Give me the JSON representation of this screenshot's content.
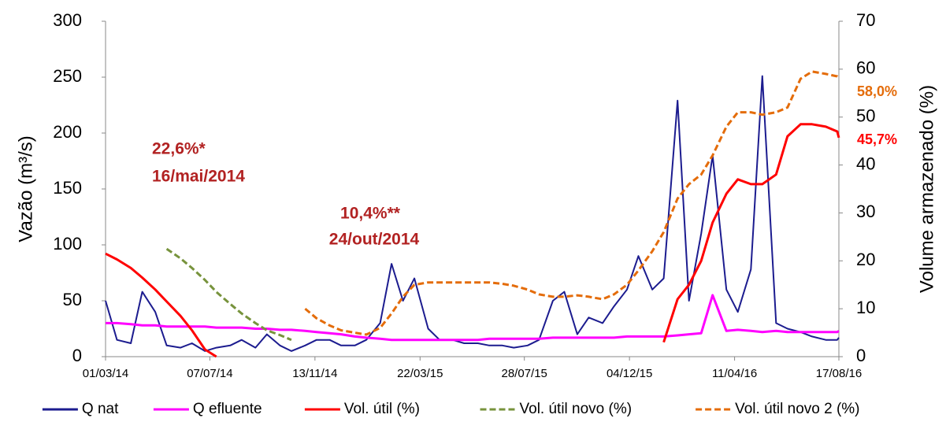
{
  "chart_data": {
    "type": "line",
    "y_label": "Vazão (m³/s)",
    "y2_label": "Volume armazenado (%)",
    "x": [
      "01/03/14",
      "15/03/14",
      "01/04/14",
      "15/04/14",
      "01/05/14",
      "15/05/14",
      "01/06/14",
      "15/06/14",
      "01/07/14",
      "15/07/14",
      "01/08/14",
      "15/08/14",
      "01/09/14",
      "15/09/14",
      "01/10/14",
      "15/10/14",
      "01/11/14",
      "15/11/14",
      "01/12/14",
      "15/12/14",
      "01/01/15",
      "15/01/15",
      "01/02/15",
      "15/02/15",
      "01/03/15",
      "15/03/15",
      "01/04/15",
      "15/04/15",
      "01/05/15",
      "15/05/15",
      "01/06/15",
      "15/06/15",
      "01/07/15",
      "15/07/15",
      "01/08/15",
      "15/08/15",
      "01/09/15",
      "15/09/15",
      "01/10/15",
      "15/10/15",
      "01/11/15",
      "15/11/15",
      "01/12/15",
      "15/12/15",
      "01/01/16",
      "15/01/16",
      "01/02/16",
      "15/02/16",
      "01/03/16",
      "15/03/16",
      "01/04/16",
      "15/04/16",
      "01/05/16",
      "15/05/16",
      "01/06/16",
      "15/06/16",
      "01/07/16",
      "15/07/16",
      "01/08/16",
      "15/08/16",
      "17/08/16"
    ],
    "xlim": [
      "01/03/14",
      "17/08/16"
    ],
    "xticks": [
      "01/03/14",
      "07/07/14",
      "13/11/14",
      "22/03/15",
      "28/07/15",
      "04/12/15",
      "11/04/16",
      "17/08/16"
    ],
    "ylim": [
      0,
      300
    ],
    "yticks": [
      0,
      50,
      100,
      150,
      200,
      250,
      300
    ],
    "y2lim": [
      0,
      70
    ],
    "y2ticks": [
      0,
      10,
      20,
      30,
      40,
      50,
      60,
      70
    ],
    "legend": "bottom",
    "series": [
      {
        "name": "Q nat",
        "color": "#1c1c8f",
        "dash": false,
        "values": [
          50,
          15,
          12,
          58,
          40,
          10,
          8,
          12,
          5,
          8,
          10,
          15,
          8,
          20,
          10,
          5,
          10,
          15,
          15,
          10,
          10,
          15,
          30,
          83,
          50,
          70,
          25,
          15,
          15,
          12,
          12,
          10,
          10,
          8,
          10,
          15,
          50,
          58,
          20,
          35,
          30,
          45,
          60,
          90,
          60,
          70,
          229,
          50,
          110,
          180,
          60,
          40,
          78,
          251,
          30,
          25,
          22,
          18,
          15,
          15,
          17
        ]
      },
      {
        "name": "Q efluente",
        "color": "#ff00ff",
        "dash": false,
        "values": [
          30,
          30,
          29,
          28,
          28,
          27,
          27,
          27,
          27,
          26,
          26,
          26,
          25,
          25,
          24,
          24,
          23,
          22,
          21,
          20,
          18,
          17,
          16,
          15,
          15,
          15,
          15,
          15,
          15,
          15,
          15,
          16,
          16,
          16,
          16,
          16,
          17,
          17,
          17,
          17,
          17,
          17,
          18,
          18,
          18,
          18,
          19,
          20,
          21,
          55,
          23,
          24,
          23,
          22,
          23,
          22,
          22,
          22,
          22,
          22,
          23
        ]
      },
      {
        "name": "Vol. útil (%)",
        "color": "#ff0000",
        "dash": false,
        "axis": "y2",
        "values": [
          21.5,
          20.3,
          18.5,
          16.5,
          14,
          11.5,
          8.5,
          5.5,
          1.5,
          0,
          null,
          null,
          null,
          null,
          null,
          null,
          null,
          null,
          null,
          null,
          null,
          null,
          null,
          null,
          null,
          null,
          null,
          null,
          null,
          null,
          null,
          null,
          null,
          null,
          null,
          null,
          null,
          null,
          null,
          null,
          null,
          null,
          null,
          null,
          null,
          3,
          12,
          15,
          20,
          28,
          34,
          37,
          36,
          36,
          38,
          46,
          48.5,
          48.5,
          48,
          47,
          45.7
        ]
      },
      {
        "name": "Vol. útil novo (%)",
        "color": "#77933c",
        "dash": true,
        "axis": "y2",
        "values": [
          null,
          null,
          null,
          null,
          null,
          22.5,
          20.5,
          18.5,
          16,
          13.5,
          11,
          9,
          7,
          5.5,
          4.5,
          3.5,
          null,
          null,
          null,
          null,
          null,
          null,
          null,
          null,
          null,
          null,
          null,
          null,
          null,
          null,
          null,
          null,
          null,
          null,
          null,
          null,
          null,
          null,
          null,
          null,
          null,
          null,
          null,
          null,
          null,
          null,
          null,
          null,
          null,
          null,
          null,
          null,
          null,
          null,
          null,
          null,
          null,
          null,
          null,
          null,
          null
        ]
      },
      {
        "name": "Vol. útil novo 2 (%)",
        "color": "#e46c0a",
        "dash": true,
        "axis": "y2",
        "values": [
          null,
          null,
          null,
          null,
          null,
          null,
          null,
          null,
          null,
          null,
          null,
          null,
          null,
          null,
          null,
          null,
          10,
          8,
          6.5,
          5.5,
          5,
          4.6,
          6,
          9,
          12.5,
          15,
          15.5,
          15.5,
          15.5,
          15.5,
          15.5,
          15.5,
          15.2,
          14.8,
          14,
          13,
          12.5,
          12.5,
          12.8,
          12.5,
          12,
          13,
          15,
          18,
          22,
          26,
          33,
          36,
          38,
          42,
          48,
          51,
          51,
          50.5,
          51,
          52,
          58,
          59.5,
          59,
          58.5,
          58
        ]
      }
    ],
    "annotations": [
      "22,6%*",
      "16/mai/2014",
      "10,4%**",
      "24/out/2014",
      "58,0%",
      "45,7%"
    ]
  }
}
